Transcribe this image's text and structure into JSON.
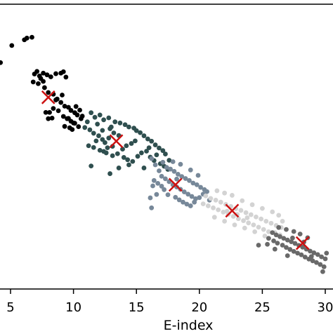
{
  "chart_data": {
    "type": "scatter",
    "xlabel": "E-index",
    "ylabel": "",
    "xlim": [
      5,
      30
    ],
    "ylim": [
      0,
      1
    ],
    "x_ticks": [
      5,
      10,
      15,
      20,
      25,
      30
    ],
    "x_tick_labels": [
      "5",
      "10",
      "15",
      "20",
      "25",
      "30"
    ],
    "grid": false,
    "legend": "none",
    "series": [
      {
        "color": "#000000",
        "points": [
          [
            4.2,
            0.795
          ],
          [
            5.1,
            0.855
          ],
          [
            6.3,
            0.881
          ],
          [
            6.7,
            0.884
          ],
          [
            6.1,
            0.875
          ],
          [
            6.9,
            0.755
          ],
          [
            7.1,
            0.764
          ],
          [
            7.3,
            0.748
          ],
          [
            7.4,
            0.739
          ],
          [
            7.6,
            0.758
          ],
          [
            7.9,
            0.752
          ],
          [
            8.2,
            0.745
          ],
          [
            8.6,
            0.756
          ],
          [
            9.0,
            0.758
          ],
          [
            9.2,
            0.763
          ],
          [
            9.4,
            0.744
          ],
          [
            7.7,
            0.707
          ],
          [
            8.0,
            0.69
          ],
          [
            8.4,
            0.684
          ],
          [
            8.7,
            0.667
          ],
          [
            9.0,
            0.655
          ],
          [
            9.3,
            0.642
          ],
          [
            9.6,
            0.638
          ],
          [
            9.8,
            0.627
          ],
          [
            10.1,
            0.619
          ],
          [
            10.3,
            0.611
          ],
          [
            9.2,
            0.606
          ],
          [
            9.5,
            0.598
          ],
          [
            9.8,
            0.589
          ],
          [
            10.0,
            0.583
          ],
          [
            8.8,
            0.626
          ],
          [
            8.4,
            0.634
          ],
          [
            8.1,
            0.62
          ],
          [
            8.3,
            0.6
          ],
          [
            8.0,
            0.598
          ],
          [
            7.8,
            0.62
          ],
          [
            10.2,
            0.641
          ],
          [
            10.5,
            0.628
          ],
          [
            10.7,
            0.607
          ],
          [
            10.1,
            0.582
          ],
          [
            9.3,
            0.571
          ],
          [
            9.7,
            0.566
          ],
          [
            9.9,
            0.56
          ],
          [
            10.4,
            0.57
          ],
          [
            8.6,
            0.664
          ],
          [
            9.1,
            0.681
          ],
          [
            7.6,
            0.729
          ],
          [
            7.2,
            0.721
          ],
          [
            6.8,
            0.727
          ],
          [
            9.6,
            0.599
          ],
          [
            10.6,
            0.598
          ]
        ]
      },
      {
        "color": "#2f4f4f",
        "points": [
          [
            11.4,
            0.619
          ],
          [
            11.7,
            0.603
          ],
          [
            12.1,
            0.611
          ],
          [
            12.4,
            0.594
          ],
          [
            12.8,
            0.601
          ],
          [
            12.9,
            0.563
          ],
          [
            13.3,
            0.587
          ],
          [
            13.7,
            0.583
          ],
          [
            14.1,
            0.577
          ],
          [
            14.4,
            0.569
          ],
          [
            14.8,
            0.565
          ],
          [
            15.0,
            0.556
          ],
          [
            15.3,
            0.549
          ],
          [
            15.6,
            0.538
          ],
          [
            15.9,
            0.527
          ],
          [
            16.2,
            0.519
          ],
          [
            16.5,
            0.506
          ],
          [
            16.8,
            0.495
          ],
          [
            17.1,
            0.486
          ],
          [
            17.3,
            0.474
          ],
          [
            10.9,
            0.567
          ],
          [
            11.3,
            0.559
          ],
          [
            11.6,
            0.547
          ],
          [
            12.0,
            0.538
          ],
          [
            12.3,
            0.525
          ],
          [
            12.5,
            0.514
          ],
          [
            11.8,
            0.52
          ],
          [
            11.2,
            0.503
          ],
          [
            11.6,
            0.497
          ],
          [
            12.1,
            0.487
          ],
          [
            12.6,
            0.478
          ],
          [
            13.1,
            0.468
          ],
          [
            13.5,
            0.475
          ],
          [
            14.0,
            0.462
          ],
          [
            14.3,
            0.454
          ],
          [
            14.7,
            0.448
          ],
          [
            15.1,
            0.466
          ],
          [
            15.4,
            0.478
          ],
          [
            15.8,
            0.484
          ],
          [
            16.1,
            0.463
          ],
          [
            16.4,
            0.451
          ],
          [
            14.2,
            0.503
          ],
          [
            14.6,
            0.511
          ],
          [
            14.9,
            0.52
          ],
          [
            13.6,
            0.539
          ],
          [
            13.2,
            0.548
          ],
          [
            12.8,
            0.53
          ],
          [
            12.3,
            0.557
          ],
          [
            13.9,
            0.491
          ],
          [
            13.1,
            0.501
          ],
          [
            12.7,
            0.496
          ],
          [
            12.4,
            0.483
          ],
          [
            16.9,
            0.44
          ],
          [
            17.2,
            0.431
          ],
          [
            17.5,
            0.42
          ],
          [
            17.6,
            0.452
          ],
          [
            16.6,
            0.471
          ],
          [
            16.0,
            0.496
          ],
          [
            11.4,
            0.432
          ],
          [
            13.6,
            0.425
          ],
          [
            12.9,
            0.405
          ],
          [
            14.4,
            0.436
          ],
          [
            15.6,
            0.425
          ],
          [
            11.1,
            0.587
          ],
          [
            11.9,
            0.579
          ],
          [
            13.0,
            0.569
          ]
        ]
      },
      {
        "color": "#778899",
        "points": [
          [
            16.2,
            0.458
          ],
          [
            16.5,
            0.436
          ],
          [
            16.8,
            0.415
          ],
          [
            17.1,
            0.445
          ],
          [
            17.4,
            0.427
          ],
          [
            17.7,
            0.421
          ],
          [
            18.0,
            0.413
          ],
          [
            18.3,
            0.403
          ],
          [
            18.6,
            0.395
          ],
          [
            18.9,
            0.388
          ],
          [
            19.2,
            0.381
          ],
          [
            19.5,
            0.372
          ],
          [
            19.8,
            0.366
          ],
          [
            20.1,
            0.357
          ],
          [
            20.4,
            0.349
          ],
          [
            17.0,
            0.396
          ],
          [
            17.3,
            0.387
          ],
          [
            17.6,
            0.377
          ],
          [
            17.9,
            0.366
          ],
          [
            18.2,
            0.358
          ],
          [
            18.5,
            0.35
          ],
          [
            18.8,
            0.341
          ],
          [
            19.1,
            0.333
          ],
          [
            19.4,
            0.325
          ],
          [
            19.7,
            0.317
          ],
          [
            16.4,
            0.381
          ],
          [
            16.7,
            0.371
          ],
          [
            17.0,
            0.361
          ],
          [
            17.2,
            0.349
          ],
          [
            16.6,
            0.332
          ],
          [
            17.5,
            0.331
          ],
          [
            18.1,
            0.322
          ],
          [
            18.4,
            0.313
          ],
          [
            18.7,
            0.305
          ],
          [
            19.0,
            0.298
          ],
          [
            19.3,
            0.292
          ],
          [
            19.6,
            0.305
          ],
          [
            20.0,
            0.321
          ],
          [
            20.3,
            0.333
          ],
          [
            20.6,
            0.342
          ],
          [
            17.9,
            0.447
          ],
          [
            18.5,
            0.438
          ],
          [
            19.3,
            0.418
          ],
          [
            19.9,
            0.399
          ],
          [
            18.2,
            0.386
          ],
          [
            16.2,
            0.285
          ],
          [
            16.1,
            0.32
          ],
          [
            20.8,
            0.312
          ],
          [
            16.3,
            0.362
          ]
        ]
      },
      {
        "color": "#d3d3d3",
        "points": [
          [
            20.5,
            0.327
          ],
          [
            20.9,
            0.318
          ],
          [
            21.3,
            0.312
          ],
          [
            21.7,
            0.305
          ],
          [
            22.1,
            0.297
          ],
          [
            22.5,
            0.29
          ],
          [
            22.9,
            0.282
          ],
          [
            23.3,
            0.276
          ],
          [
            23.7,
            0.268
          ],
          [
            24.1,
            0.261
          ],
          [
            24.5,
            0.253
          ],
          [
            24.9,
            0.246
          ],
          [
            25.3,
            0.238
          ],
          [
            25.7,
            0.231
          ],
          [
            26.1,
            0.223
          ],
          [
            26.5,
            0.216
          ],
          [
            20.3,
            0.299
          ],
          [
            20.7,
            0.292
          ],
          [
            21.1,
            0.285
          ],
          [
            21.5,
            0.278
          ],
          [
            21.9,
            0.27
          ],
          [
            22.3,
            0.262
          ],
          [
            22.7,
            0.255
          ],
          [
            23.1,
            0.247
          ],
          [
            23.5,
            0.24
          ],
          [
            23.9,
            0.232
          ],
          [
            24.3,
            0.225
          ],
          [
            24.7,
            0.217
          ],
          [
            25.1,
            0.209
          ],
          [
            25.5,
            0.201
          ],
          [
            21.4,
            0.345
          ],
          [
            22.0,
            0.337
          ],
          [
            22.6,
            0.329
          ],
          [
            23.4,
            0.31
          ],
          [
            24.2,
            0.296
          ],
          [
            25.0,
            0.283
          ],
          [
            25.8,
            0.271
          ],
          [
            26.3,
            0.259
          ],
          [
            21.2,
            0.252
          ],
          [
            22.0,
            0.238
          ],
          [
            22.8,
            0.225
          ],
          [
            23.6,
            0.214
          ],
          [
            24.4,
            0.201
          ],
          [
            25.2,
            0.186
          ],
          [
            26.0,
            0.198
          ],
          [
            26.4,
            0.19
          ],
          [
            22.2,
            0.273
          ],
          [
            23.0,
            0.262
          ],
          [
            23.8,
            0.25
          ],
          [
            26.6,
            0.238
          ]
        ]
      },
      {
        "color": "#696969",
        "points": [
          [
            25.8,
            0.198
          ],
          [
            26.1,
            0.19
          ],
          [
            26.4,
            0.184
          ],
          [
            26.7,
            0.178
          ],
          [
            27.0,
            0.172
          ],
          [
            27.3,
            0.166
          ],
          [
            27.6,
            0.16
          ],
          [
            27.9,
            0.153
          ],
          [
            28.2,
            0.147
          ],
          [
            28.5,
            0.14
          ],
          [
            28.8,
            0.133
          ],
          [
            29.1,
            0.127
          ],
          [
            29.4,
            0.121
          ],
          [
            29.7,
            0.113
          ],
          [
            30.0,
            0.106
          ],
          [
            25.5,
            0.178
          ],
          [
            25.9,
            0.169
          ],
          [
            26.2,
            0.161
          ],
          [
            26.6,
            0.154
          ],
          [
            26.9,
            0.146
          ],
          [
            27.2,
            0.139
          ],
          [
            27.5,
            0.132
          ],
          [
            27.8,
            0.126
          ],
          [
            28.1,
            0.12
          ],
          [
            28.4,
            0.112
          ],
          [
            28.7,
            0.105
          ],
          [
            29.0,
            0.099
          ],
          [
            29.3,
            0.093
          ],
          [
            29.6,
            0.086
          ],
          [
            29.9,
            0.078
          ],
          [
            26.3,
            0.216
          ],
          [
            26.9,
            0.209
          ],
          [
            27.5,
            0.202
          ],
          [
            28.0,
            0.193
          ],
          [
            28.6,
            0.18
          ],
          [
            25.4,
            0.157
          ],
          [
            26.0,
            0.14
          ],
          [
            24.7,
            0.154
          ],
          [
            27.0,
            0.117
          ],
          [
            28.9,
            0.114
          ],
          [
            30.1,
            0.126
          ],
          [
            29.8,
            0.061
          ],
          [
            27.4,
            0.179
          ],
          [
            28.3,
            0.165
          ]
        ]
      },
      {
        "name": "",
        "color": "#cc1111",
        "marker": "x",
        "points": [
          [
            8.0,
            0.673
          ],
          [
            13.4,
            0.519
          ],
          [
            18.1,
            0.366
          ],
          [
            22.6,
            0.275
          ],
          [
            28.2,
            0.161
          ]
        ]
      }
    ]
  }
}
